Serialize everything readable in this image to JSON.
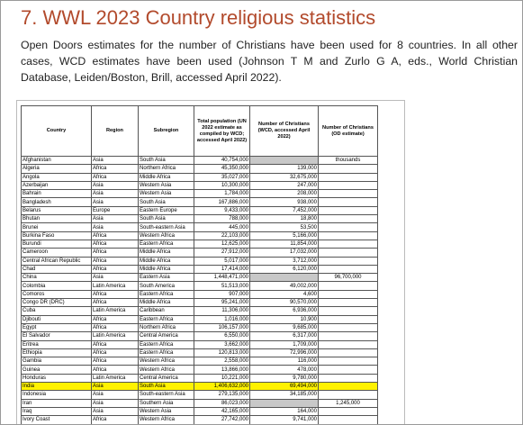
{
  "header": {
    "title": "7. WWL 2023 Country religious statistics",
    "text": "Open Doors estimates for the number of Christians have been used for 8 countries. In all other cases, WCD estimates have been used (Johnson T M and Zurlo G A, eds., World Christian Database, Leiden/Boston, Brill, accessed April 2022)."
  },
  "table": {
    "columns": [
      "Country",
      "Region",
      "Subregion",
      "Total population (UN 2022 estimate as compiled by WCD; accessed April 2022)",
      "Number of Christians (WCD, accessed April 2022)",
      "Number of Christians (OD estimate)"
    ],
    "rows": [
      [
        "Afghanistan",
        "Asia",
        "South Asia",
        "40,754,000",
        null,
        "thousands"
      ],
      [
        "Algeria",
        "Africa",
        "Northern Africa",
        "45,350,000",
        "139,000"
      ],
      [
        "Angola",
        "Africa",
        "Middle Africa",
        "35,027,000",
        "32,675,000"
      ],
      [
        "Azerbaijan",
        "Asia",
        "Western Asia",
        "10,300,000",
        "247,000"
      ],
      [
        "Bahrain",
        "Asia",
        "Western Asia",
        "1,784,000",
        "208,000"
      ],
      [
        "Bangladesh",
        "Asia",
        "South Asia",
        "167,886,000",
        "938,000"
      ],
      [
        "Belarus",
        "Europe",
        "Eastern Europe",
        "9,433,000",
        "7,452,000"
      ],
      [
        "Bhutan",
        "Asia",
        "South Asia",
        "788,000",
        "18,800"
      ],
      [
        "Brunei",
        "Asia",
        "South-eastern Asia",
        "445,000",
        "53,500"
      ],
      [
        "Burkina Faso",
        "Africa",
        "Western Africa",
        "22,103,000",
        "5,166,000"
      ],
      [
        "Burundi",
        "Africa",
        "Eastern Africa",
        "12,625,000",
        "11,854,000"
      ],
      [
        "Cameroon",
        "Africa",
        "Middle Africa",
        "27,912,000",
        "17,032,000"
      ],
      [
        "Central African Republic",
        "Africa",
        "Middle Africa",
        "5,017,000",
        "3,712,000"
      ],
      [
        "Chad",
        "Africa",
        "Middle Africa",
        "17,414,000",
        "6,120,000"
      ],
      [
        "China",
        "Asia",
        "Eastern Asia",
        "1,448,471,000",
        null,
        "96,700,000"
      ],
      [
        "Colombia",
        "Latin America",
        "South America",
        "51,513,000",
        "49,002,000"
      ],
      [
        "Comoros",
        "Africa",
        "Eastern Africa",
        "907,000",
        "4,600"
      ],
      [
        "Congo DR (DRC)",
        "Africa",
        "Middle Africa",
        "95,241,000",
        "90,570,000"
      ],
      [
        "Cuba",
        "Latin America",
        "Caribbean",
        "11,306,000",
        "6,936,000"
      ],
      [
        "Djibouti",
        "Africa",
        "Eastern Africa",
        "1,016,000",
        "10,900"
      ],
      [
        "Egypt",
        "Africa",
        "Northern Africa",
        "106,157,000",
        "9,685,000"
      ],
      [
        "El Salvador",
        "Latin America",
        "Central America",
        "6,550,000",
        "6,317,000"
      ],
      [
        "Eritrea",
        "Africa",
        "Eastern Africa",
        "3,662,000",
        "1,709,000"
      ],
      [
        "Ethiopia",
        "Africa",
        "Eastern Africa",
        "120,813,000",
        "72,996,000"
      ],
      [
        "Gambia",
        "Africa",
        "Western Africa",
        "2,558,000",
        "116,000"
      ],
      [
        "Guinea",
        "Africa",
        "Western Africa",
        "13,866,000",
        "478,000"
      ],
      [
        "Honduras",
        "Latin America",
        "Central America",
        "10,221,000",
        "9,780,000"
      ],
      [
        "India",
        "Asia",
        "South Asia",
        "1,406,632,000",
        "69,494,000"
      ],
      [
        "Indonesia",
        "Asia",
        "South-eastern Asia",
        "279,135,000",
        "34,185,000"
      ],
      [
        "Iran",
        "Asia",
        "Southern Asia",
        "86,023,000",
        null,
        "1,245,000"
      ],
      [
        "Iraq",
        "Asia",
        "Western Asia",
        "42,165,000",
        "164,000"
      ],
      [
        "Ivory Coast",
        "Africa",
        "Western Africa",
        "27,742,000",
        "9,741,000"
      ]
    ]
  }
}
